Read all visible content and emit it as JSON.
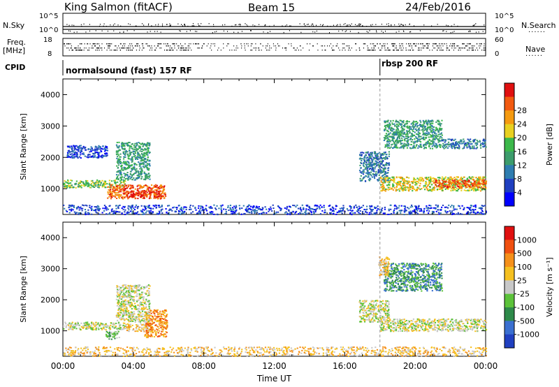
{
  "header": {
    "station": "King Salmon (fitACF)",
    "beam": "Beam 15",
    "date": "24/Feb/2016"
  },
  "side_labels": {
    "nsky": "N.Sky",
    "freq": "Freq.",
    "freq_unit": "[MHz]",
    "cpid": "CPID",
    "nsearch": "N.Search",
    "nave": "Nave",
    "dots": "......"
  },
  "noise_axis": {
    "left_top": "10^5",
    "left_bottom": "10^0",
    "right_top": "10^5",
    "right_bottom": "10^0"
  },
  "freq_axis": {
    "left_top": "18",
    "left_bottom": "8",
    "right_top": "60",
    "right_bottom": "0"
  },
  "cpid_segments": [
    {
      "label": "normalsound (fast) 157 RF",
      "start_hour": 0
    },
    {
      "label": "rbsp 200 RF",
      "start_hour": 18
    }
  ],
  "chart_data": [
    {
      "type": "heatmap",
      "name": "Power",
      "ylabel": "Slant Range [km]",
      "xlabel": "Time UT",
      "xlim_hours": [
        0,
        24
      ],
      "ylim": [
        180,
        4500
      ],
      "yticks": [
        1000,
        2000,
        3000,
        4000
      ],
      "colorbar": {
        "label": "Power [dB]",
        "ticks": [
          "4",
          "8",
          "12",
          "16",
          "20",
          "24",
          "28"
        ],
        "colors": [
          "#0000ff",
          "#1f3fc0",
          "#2e7db0",
          "#3c9c6c",
          "#3cb84a",
          "#e8d020",
          "#f59a10",
          "#f25a10",
          "#e01010"
        ]
      },
      "echo_regions": [
        {
          "t0": 0.0,
          "t1": 3.5,
          "r0": 1050,
          "r1": 1300,
          "level": 4
        },
        {
          "t0": 2.5,
          "t1": 5.8,
          "r0": 700,
          "r1": 1150,
          "level": 7
        },
        {
          "t0": 3.6,
          "t1": 5.5,
          "r0": 750,
          "r1": 950,
          "level": 8
        },
        {
          "t0": 3.0,
          "t1": 4.9,
          "r0": 1300,
          "r1": 2500,
          "level": 3
        },
        {
          "t0": 0.2,
          "t1": 2.5,
          "r0": 2000,
          "r1": 2400,
          "level": 1
        },
        {
          "t0": 16.8,
          "t1": 18.5,
          "r0": 1250,
          "r1": 2200,
          "level": 2
        },
        {
          "t0": 18.0,
          "t1": 24.0,
          "r0": 950,
          "r1": 1400,
          "level": 5
        },
        {
          "t0": 21.0,
          "t1": 24.0,
          "r0": 1050,
          "r1": 1300,
          "level": 7
        },
        {
          "t0": 18.2,
          "t1": 21.5,
          "r0": 2300,
          "r1": 3200,
          "level": 3
        },
        {
          "t0": 21.5,
          "t1": 24.0,
          "r0": 2300,
          "r1": 2600,
          "level": 2
        },
        {
          "t0": 0.0,
          "t1": 24.0,
          "r0": 200,
          "r1": 500,
          "level": 1
        }
      ]
    },
    {
      "type": "heatmap",
      "name": "Velocity",
      "ylabel": "Slant Range [km]",
      "xlabel": "Time UT",
      "xlim_hours": [
        0,
        24
      ],
      "ylim": [
        180,
        4500
      ],
      "yticks": [
        1000,
        2000,
        3000,
        4000
      ],
      "xtick_labels": [
        "00:00",
        "04:00",
        "08:00",
        "12:00",
        "16:00",
        "20:00",
        "00:00"
      ],
      "colorbar": {
        "label": "Velocity [m s⁻¹]",
        "ticks": [
          "1000",
          "500",
          "100",
          "25",
          "-25",
          "-100",
          "-500",
          "-1000"
        ],
        "colors": [
          "#2040c0",
          "#3a6fd0",
          "#2e8a4a",
          "#5cc23a",
          "#c8c8c8",
          "#f5c020",
          "#f5901a",
          "#f05010",
          "#e01010"
        ]
      },
      "echo_regions": [
        {
          "t0": 0.0,
          "t1": 3.5,
          "r0": 1050,
          "r1": 1300,
          "level": 4
        },
        {
          "t0": 2.4,
          "t1": 3.2,
          "r0": 750,
          "r1": 1000,
          "level": 3
        },
        {
          "t0": 3.5,
          "t1": 5.0,
          "r0": 1000,
          "r1": 1250,
          "level": 5
        },
        {
          "t0": 4.6,
          "t1": 5.9,
          "r0": 800,
          "r1": 1700,
          "level": 6
        },
        {
          "t0": 3.0,
          "t1": 4.9,
          "r0": 1300,
          "r1": 2500,
          "level": 4
        },
        {
          "t0": 16.8,
          "t1": 18.5,
          "r0": 1300,
          "r1": 2000,
          "level": 4
        },
        {
          "t0": 18.0,
          "t1": 24.0,
          "r0": 1000,
          "r1": 1400,
          "level": 4
        },
        {
          "t0": 18.2,
          "t1": 21.5,
          "r0": 2300,
          "r1": 3200,
          "level": 2
        },
        {
          "t0": 17.9,
          "t1": 18.5,
          "r0": 2800,
          "r1": 3400,
          "level": 5
        },
        {
          "t0": 0.0,
          "t1": 24.0,
          "r0": 200,
          "r1": 500,
          "level": 5
        }
      ]
    }
  ]
}
